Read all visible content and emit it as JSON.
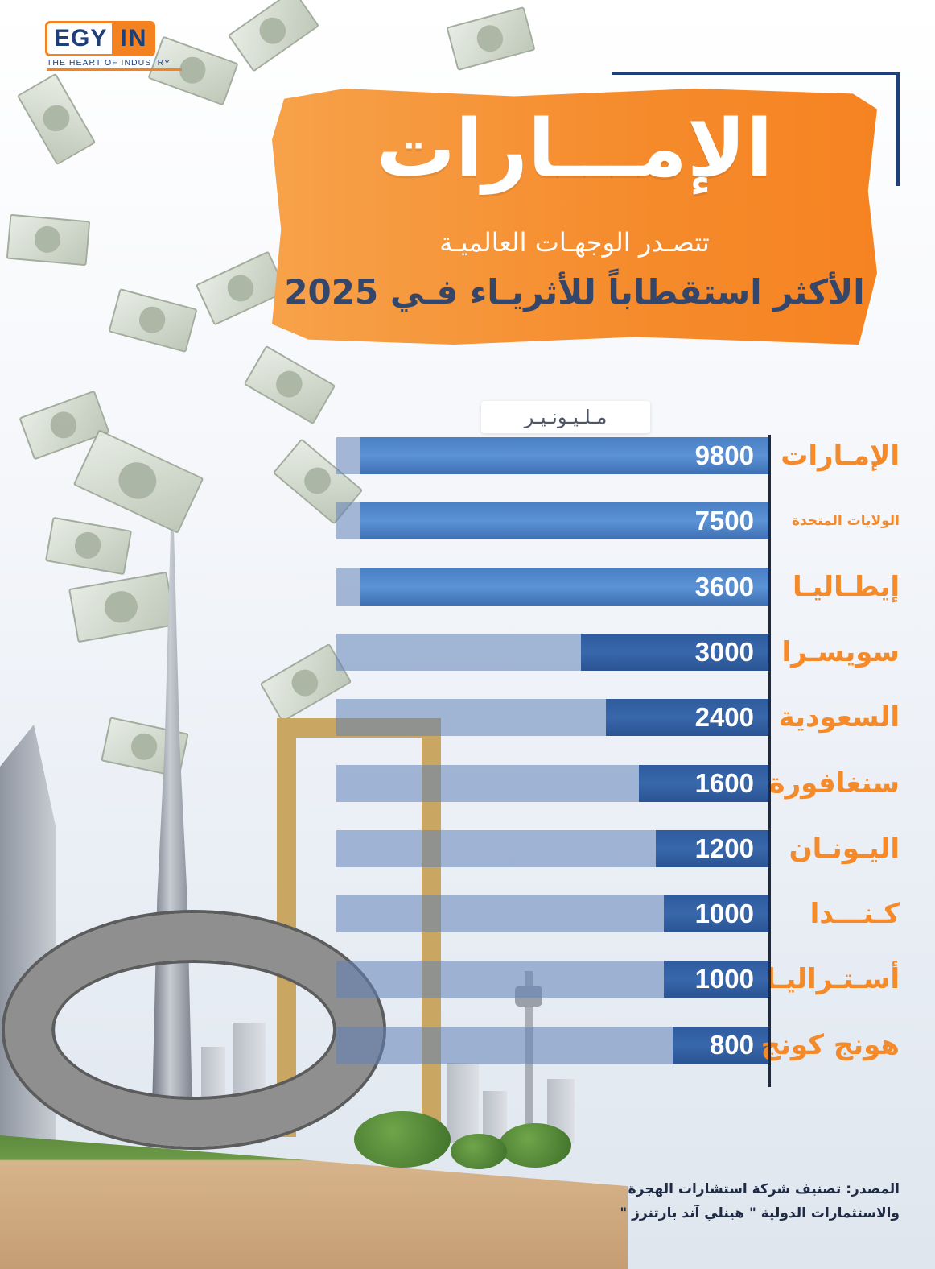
{
  "logo": {
    "brand_left": "EGY",
    "brand_right": "IN",
    "tagline": "THE HEART OF INDUSTRY"
  },
  "header": {
    "title": "الإمـــارات",
    "subtitle_line1": "تتصـدر الوجهـات العالميـة",
    "subtitle_line2": "الأكثر استقطاباً للأثريـاء فـي 2025"
  },
  "colors": {
    "accent": "#f58a2a",
    "bar": "#3e6fb3",
    "track": "#8ea9d3",
    "dark": "#1e3f78"
  },
  "chart_data": {
    "type": "bar",
    "orientation": "horizontal",
    "unit_label": "مـلـيـونـيـر",
    "categories": [
      "الإمـارات",
      "الولايات المتحدة",
      "إيطـاليـا",
      "سويسـرا",
      "السعودية",
      "سنغافورة",
      "اليـونـان",
      "كـنـــدا",
      "أسـتـراليـا",
      "هونج كونج"
    ],
    "values": [
      9800,
      7500,
      3600,
      3000,
      2400,
      1600,
      1200,
      1000,
      1000,
      800
    ],
    "value_labels": [
      "9800",
      "7500",
      "3600",
      "3000",
      "2400",
      "1600",
      "1200",
      "1000",
      "1000",
      "800"
    ]
  },
  "source": {
    "line1": "المصدر: تصنيف شركة استشارات الهجرة",
    "line2": "والاستثمارات الدولية \" هينلي آند بارتنرز \""
  }
}
